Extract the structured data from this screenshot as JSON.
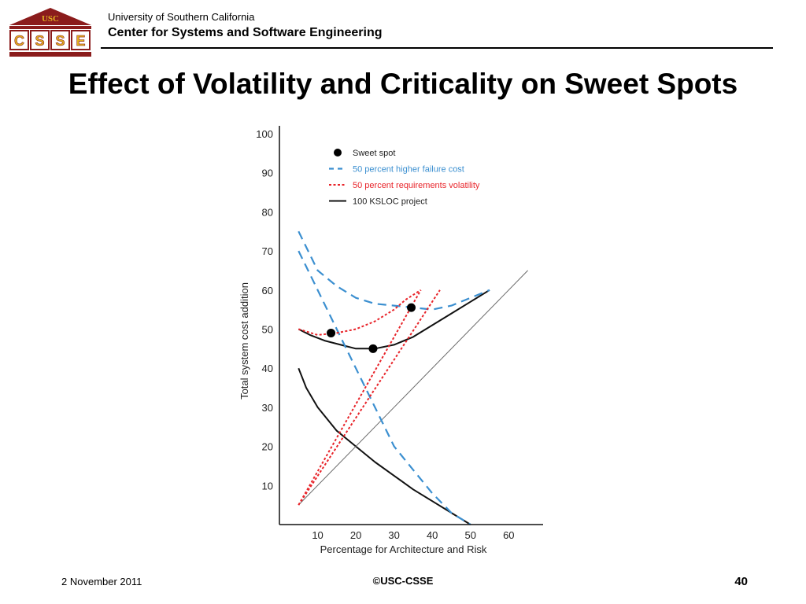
{
  "header": {
    "logo_text": "USC",
    "logo_letters": [
      "C",
      "S",
      "S",
      "E"
    ],
    "university": "University of Southern California",
    "center": "Center for Systems and Software Engineering"
  },
  "slide": {
    "title": "Effect of Volatility and Criticality on Sweet Spots"
  },
  "footer": {
    "date": "2 November 2011",
    "copyright": "©USC-CSSE",
    "page": "40"
  },
  "colors": {
    "logo_maroon": "#8b1c1c",
    "logo_gold": "#e0b020",
    "blue_dash": "#3b8fd0",
    "red_dot": "#e8242a",
    "black_line": "#111111",
    "gray_line": "#6a6a6a"
  },
  "chart_data": {
    "type": "line",
    "title": "",
    "xlabel": "Percentage for Architecture and Risk",
    "ylabel": "Total system cost addition",
    "xlim": [
      0,
      69
    ],
    "ylim": [
      0,
      102
    ],
    "x_ticks": [
      10,
      20,
      30,
      40,
      50,
      60
    ],
    "y_ticks": [
      10,
      20,
      30,
      40,
      50,
      60,
      70,
      80,
      90,
      100
    ],
    "legend": {
      "placement": "top-left",
      "entries": [
        {
          "label": "Sweet spot",
          "key": "sweet"
        },
        {
          "label": "50 percent higher failure cost",
          "key": "blue"
        },
        {
          "label": "50 percent requirements volatility",
          "key": "red"
        },
        {
          "label": "100 KSLOC project",
          "key": "black"
        }
      ]
    },
    "series": [
      {
        "key": "black",
        "style": "solid",
        "points": [
          [
            5,
            40
          ],
          [
            7,
            35
          ],
          [
            10,
            30
          ],
          [
            15,
            24
          ],
          [
            20,
            20
          ],
          [
            25,
            16
          ],
          [
            30,
            12.5
          ],
          [
            35,
            9
          ],
          [
            40,
            6
          ],
          [
            45,
            3
          ],
          [
            50,
            0
          ]
        ]
      },
      {
        "key": "black",
        "style": "solid",
        "points": [
          [
            5,
            50
          ],
          [
            8,
            48.5
          ],
          [
            12,
            47
          ],
          [
            16,
            46
          ],
          [
            20,
            45
          ],
          [
            25,
            45
          ],
          [
            30,
            46
          ],
          [
            35,
            48
          ],
          [
            40,
            51
          ],
          [
            45,
            54
          ],
          [
            50,
            57
          ],
          [
            55,
            60
          ]
        ]
      },
      {
        "key": "gray",
        "style": "thin",
        "points": [
          [
            5,
            5
          ],
          [
            65,
            65
          ]
        ]
      },
      {
        "key": "blue",
        "style": "dash",
        "points": [
          [
            5,
            70
          ],
          [
            10,
            60
          ],
          [
            15,
            50
          ],
          [
            20,
            40
          ],
          [
            25,
            30
          ],
          [
            30,
            20
          ],
          [
            35,
            14
          ],
          [
            40,
            8
          ],
          [
            45,
            3
          ],
          [
            50,
            0
          ]
        ]
      },
      {
        "key": "blue",
        "style": "dash",
        "points": [
          [
            5,
            75
          ],
          [
            10,
            65
          ],
          [
            15,
            61
          ],
          [
            20,
            58
          ],
          [
            25,
            56.5
          ],
          [
            30,
            56
          ],
          [
            35,
            55.5
          ],
          [
            40,
            55
          ],
          [
            45,
            56
          ],
          [
            50,
            58
          ],
          [
            55,
            60
          ]
        ]
      },
      {
        "key": "red",
        "style": "dot",
        "points": [
          [
            5,
            5
          ],
          [
            42,
            60
          ]
        ]
      },
      {
        "key": "red",
        "style": "dot",
        "points": [
          [
            5,
            5
          ],
          [
            37,
            60
          ]
        ]
      },
      {
        "key": "red",
        "style": "dot",
        "points": [
          [
            5,
            50
          ],
          [
            10,
            48.5
          ],
          [
            15,
            49
          ],
          [
            20,
            50
          ],
          [
            25,
            52
          ],
          [
            30,
            55
          ],
          [
            33,
            57.5
          ],
          [
            37,
            60
          ]
        ]
      }
    ],
    "sweet_spots": [
      {
        "x": 13.5,
        "y": 49
      },
      {
        "x": 24.5,
        "y": 45
      },
      {
        "x": 34.5,
        "y": 55.5
      }
    ]
  }
}
